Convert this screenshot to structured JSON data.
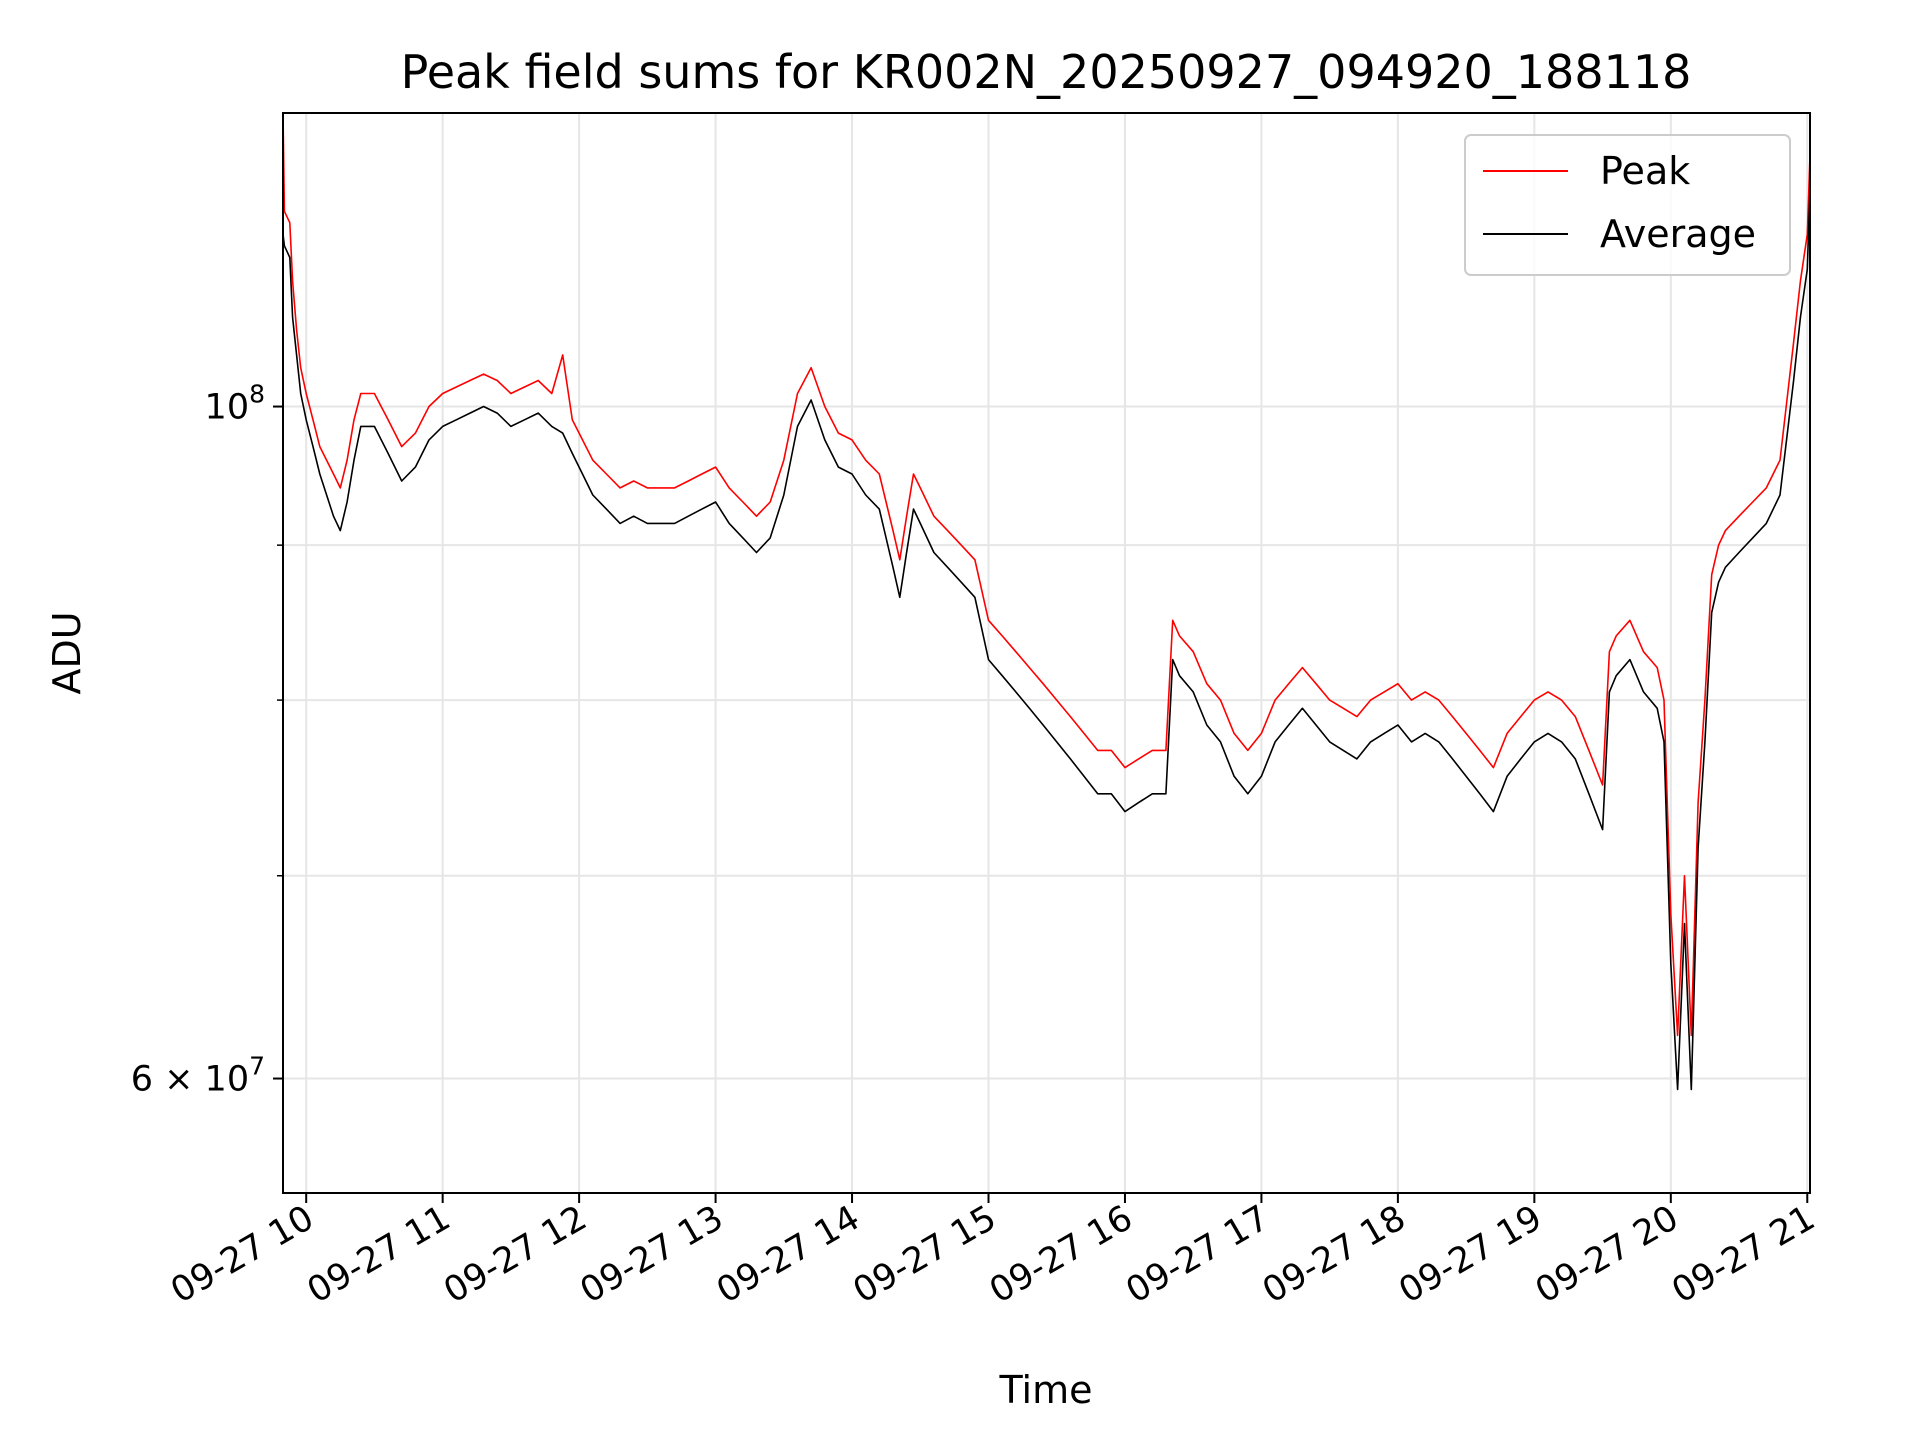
{
  "chart_data": {
    "type": "line",
    "title": "Peak field sums for KR002N_20250927_094920_188118",
    "xlabel": "Time",
    "ylabel": "ADU",
    "y_scale": "log",
    "ylim": [
      55000000,
      125000000
    ],
    "x_range_hours": [
      9.83,
      21.02
    ],
    "grid": true,
    "legend_position": "top-right",
    "x_ticks": [
      {
        "value": 10,
        "label": "09-27 10"
      },
      {
        "value": 11,
        "label": "09-27 11"
      },
      {
        "value": 12,
        "label": "09-27 12"
      },
      {
        "value": 13,
        "label": "09-27 13"
      },
      {
        "value": 14,
        "label": "09-27 14"
      },
      {
        "value": 15,
        "label": "09-27 15"
      },
      {
        "value": 16,
        "label": "09-27 16"
      },
      {
        "value": 17,
        "label": "09-27 17"
      },
      {
        "value": 18,
        "label": "09-27 18"
      },
      {
        "value": 19,
        "label": "09-27 19"
      },
      {
        "value": 20,
        "label": "09-27 20"
      },
      {
        "value": 21,
        "label": "09-27 21"
      }
    ],
    "y_ticks_major": [
      {
        "value": 60000000,
        "base": "6 × 10",
        "exp": "7"
      },
      {
        "value": 100000000,
        "base": "10",
        "exp": "8"
      }
    ],
    "y_ticks_minor": [
      70000000,
      80000000,
      90000000
    ],
    "series": [
      {
        "name": "Peak",
        "color": "#ff0000",
        "x": [
          9.83,
          9.84,
          9.88,
          9.9,
          9.93,
          9.96,
          10.0,
          10.05,
          10.1,
          10.2,
          10.25,
          10.3,
          10.35,
          10.4,
          10.5,
          10.6,
          10.7,
          10.8,
          10.9,
          11.0,
          11.1,
          11.2,
          11.3,
          11.4,
          11.5,
          11.6,
          11.7,
          11.8,
          11.88,
          11.95,
          12.0,
          12.1,
          12.2,
          12.3,
          12.4,
          12.5,
          12.6,
          12.7,
          12.8,
          12.9,
          13.0,
          13.1,
          13.2,
          13.3,
          13.4,
          13.5,
          13.6,
          13.7,
          13.8,
          13.9,
          14.0,
          14.1,
          14.2,
          14.3,
          14.35,
          14.4,
          14.45,
          14.5,
          14.6,
          14.7,
          14.8,
          14.9,
          15.0,
          15.1,
          15.2,
          15.3,
          15.4,
          15.5,
          15.6,
          15.7,
          15.8,
          15.9,
          16.0,
          16.1,
          16.2,
          16.3,
          16.35,
          16.4,
          16.5,
          16.6,
          16.7,
          16.8,
          16.9,
          17.0,
          17.1,
          17.2,
          17.3,
          17.4,
          17.5,
          17.6,
          17.7,
          17.8,
          17.9,
          18.0,
          18.1,
          18.2,
          18.3,
          18.4,
          18.5,
          18.6,
          18.7,
          18.8,
          18.9,
          19.0,
          19.1,
          19.2,
          19.3,
          19.4,
          19.5,
          19.55,
          19.6,
          19.7,
          19.8,
          19.9,
          19.95,
          20.0,
          20.05,
          20.1,
          20.15,
          20.2,
          20.25,
          20.3,
          20.35,
          20.4,
          20.5,
          20.6,
          20.7,
          20.8,
          20.9,
          20.95,
          21.0,
          21.02
        ],
        "values": [
          125000000,
          116000000,
          115000000,
          110000000,
          106000000,
          103000000,
          101000000,
          99000000,
          97000000,
          95000000,
          94000000,
          96000000,
          99000000,
          101000000,
          101000000,
          99000000,
          97000000,
          98000000,
          100000000,
          101000000,
          101500000,
          102000000,
          102500000,
          102000000,
          101000000,
          101500000,
          102000000,
          101000000,
          104000000,
          99000000,
          98000000,
          96000000,
          95000000,
          94000000,
          94500000,
          94000000,
          94000000,
          94000000,
          94500000,
          95000000,
          95500000,
          94000000,
          93000000,
          92000000,
          93000000,
          96000000,
          101000000,
          103000000,
          100000000,
          98000000,
          97500000,
          96000000,
          95000000,
          91000000,
          89000000,
          92000000,
          95000000,
          94000000,
          92000000,
          91000000,
          90000000,
          89000000,
          85000000,
          84000000,
          83000000,
          82000000,
          81000000,
          80000000,
          79000000,
          78000000,
          77000000,
          77000000,
          76000000,
          76500000,
          77000000,
          77000000,
          85000000,
          84000000,
          83000000,
          81000000,
          80000000,
          78000000,
          77000000,
          78000000,
          80000000,
          81000000,
          82000000,
          81000000,
          80000000,
          79500000,
          79000000,
          80000000,
          80500000,
          81000000,
          80000000,
          80500000,
          80000000,
          79000000,
          78000000,
          77000000,
          76000000,
          78000000,
          79000000,
          80000000,
          80500000,
          80000000,
          79000000,
          77000000,
          75000000,
          83000000,
          84000000,
          85000000,
          83000000,
          82000000,
          80000000,
          68000000,
          62000000,
          70000000,
          62000000,
          74000000,
          80000000,
          88000000,
          90000000,
          91000000,
          92000000,
          93000000,
          94000000,
          96000000,
          105000000,
          110000000,
          114000000,
          121000000
        ]
      },
      {
        "name": "Average",
        "color": "#000000",
        "x": [
          9.83,
          9.84,
          9.88,
          9.9,
          9.93,
          9.96,
          10.0,
          10.05,
          10.1,
          10.2,
          10.25,
          10.3,
          10.35,
          10.4,
          10.5,
          10.6,
          10.7,
          10.8,
          10.9,
          11.0,
          11.1,
          11.2,
          11.3,
          11.4,
          11.5,
          11.6,
          11.7,
          11.8,
          11.88,
          11.95,
          12.0,
          12.1,
          12.2,
          12.3,
          12.4,
          12.5,
          12.6,
          12.7,
          12.8,
          12.9,
          13.0,
          13.1,
          13.2,
          13.3,
          13.4,
          13.5,
          13.6,
          13.7,
          13.8,
          13.9,
          14.0,
          14.1,
          14.2,
          14.3,
          14.35,
          14.4,
          14.45,
          14.5,
          14.6,
          14.7,
          14.8,
          14.9,
          15.0,
          15.1,
          15.2,
          15.3,
          15.4,
          15.5,
          15.6,
          15.7,
          15.8,
          15.9,
          16.0,
          16.1,
          16.2,
          16.3,
          16.35,
          16.4,
          16.5,
          16.6,
          16.7,
          16.8,
          16.9,
          17.0,
          17.1,
          17.2,
          17.3,
          17.4,
          17.5,
          17.6,
          17.7,
          17.8,
          17.9,
          18.0,
          18.1,
          18.2,
          18.3,
          18.4,
          18.5,
          18.6,
          18.7,
          18.8,
          18.9,
          19.0,
          19.1,
          19.2,
          19.3,
          19.4,
          19.5,
          19.55,
          19.6,
          19.7,
          19.8,
          19.9,
          19.95,
          20.0,
          20.05,
          20.1,
          20.15,
          20.2,
          20.25,
          20.3,
          20.35,
          20.4,
          20.5,
          20.6,
          20.7,
          20.8,
          20.9,
          20.95,
          21.0,
          21.02
        ],
        "values": [
          114000000,
          113000000,
          112000000,
          107000000,
          104000000,
          101000000,
          99000000,
          97000000,
          95000000,
          92000000,
          91000000,
          93000000,
          96000000,
          98500000,
          98500000,
          96500000,
          94500000,
          95500000,
          97500000,
          98500000,
          99000000,
          99500000,
          100000000,
          99500000,
          98500000,
          99000000,
          99500000,
          98500000,
          98000000,
          96500000,
          95500000,
          93500000,
          92500000,
          91500000,
          92000000,
          91500000,
          91500000,
          91500000,
          92000000,
          92500000,
          93000000,
          91500000,
          90500000,
          89500000,
          90500000,
          93500000,
          98500000,
          100500000,
          97500000,
          95500000,
          95000000,
          93500000,
          92500000,
          88500000,
          86500000,
          89500000,
          92500000,
          91500000,
          89500000,
          88500000,
          87500000,
          86500000,
          82500000,
          81500000,
          80500000,
          79500000,
          78500000,
          77500000,
          76500000,
          75500000,
          74500000,
          74500000,
          73500000,
          74000000,
          74500000,
          74500000,
          82500000,
          81500000,
          80500000,
          78500000,
          77500000,
          75500000,
          74500000,
          75500000,
          77500000,
          78500000,
          79500000,
          78500000,
          77500000,
          77000000,
          76500000,
          77500000,
          78000000,
          78500000,
          77500000,
          78000000,
          77500000,
          76500000,
          75500000,
          74500000,
          73500000,
          75500000,
          76500000,
          77500000,
          78000000,
          77500000,
          76500000,
          74500000,
          72500000,
          80500000,
          81500000,
          82500000,
          80500000,
          79500000,
          77500000,
          65500000,
          59500000,
          67500000,
          59500000,
          71500000,
          77500000,
          85500000,
          87500000,
          88500000,
          89500000,
          90500000,
          91500000,
          93500000,
          102000000,
          107000000,
          111000000,
          118000000
        ]
      }
    ]
  }
}
